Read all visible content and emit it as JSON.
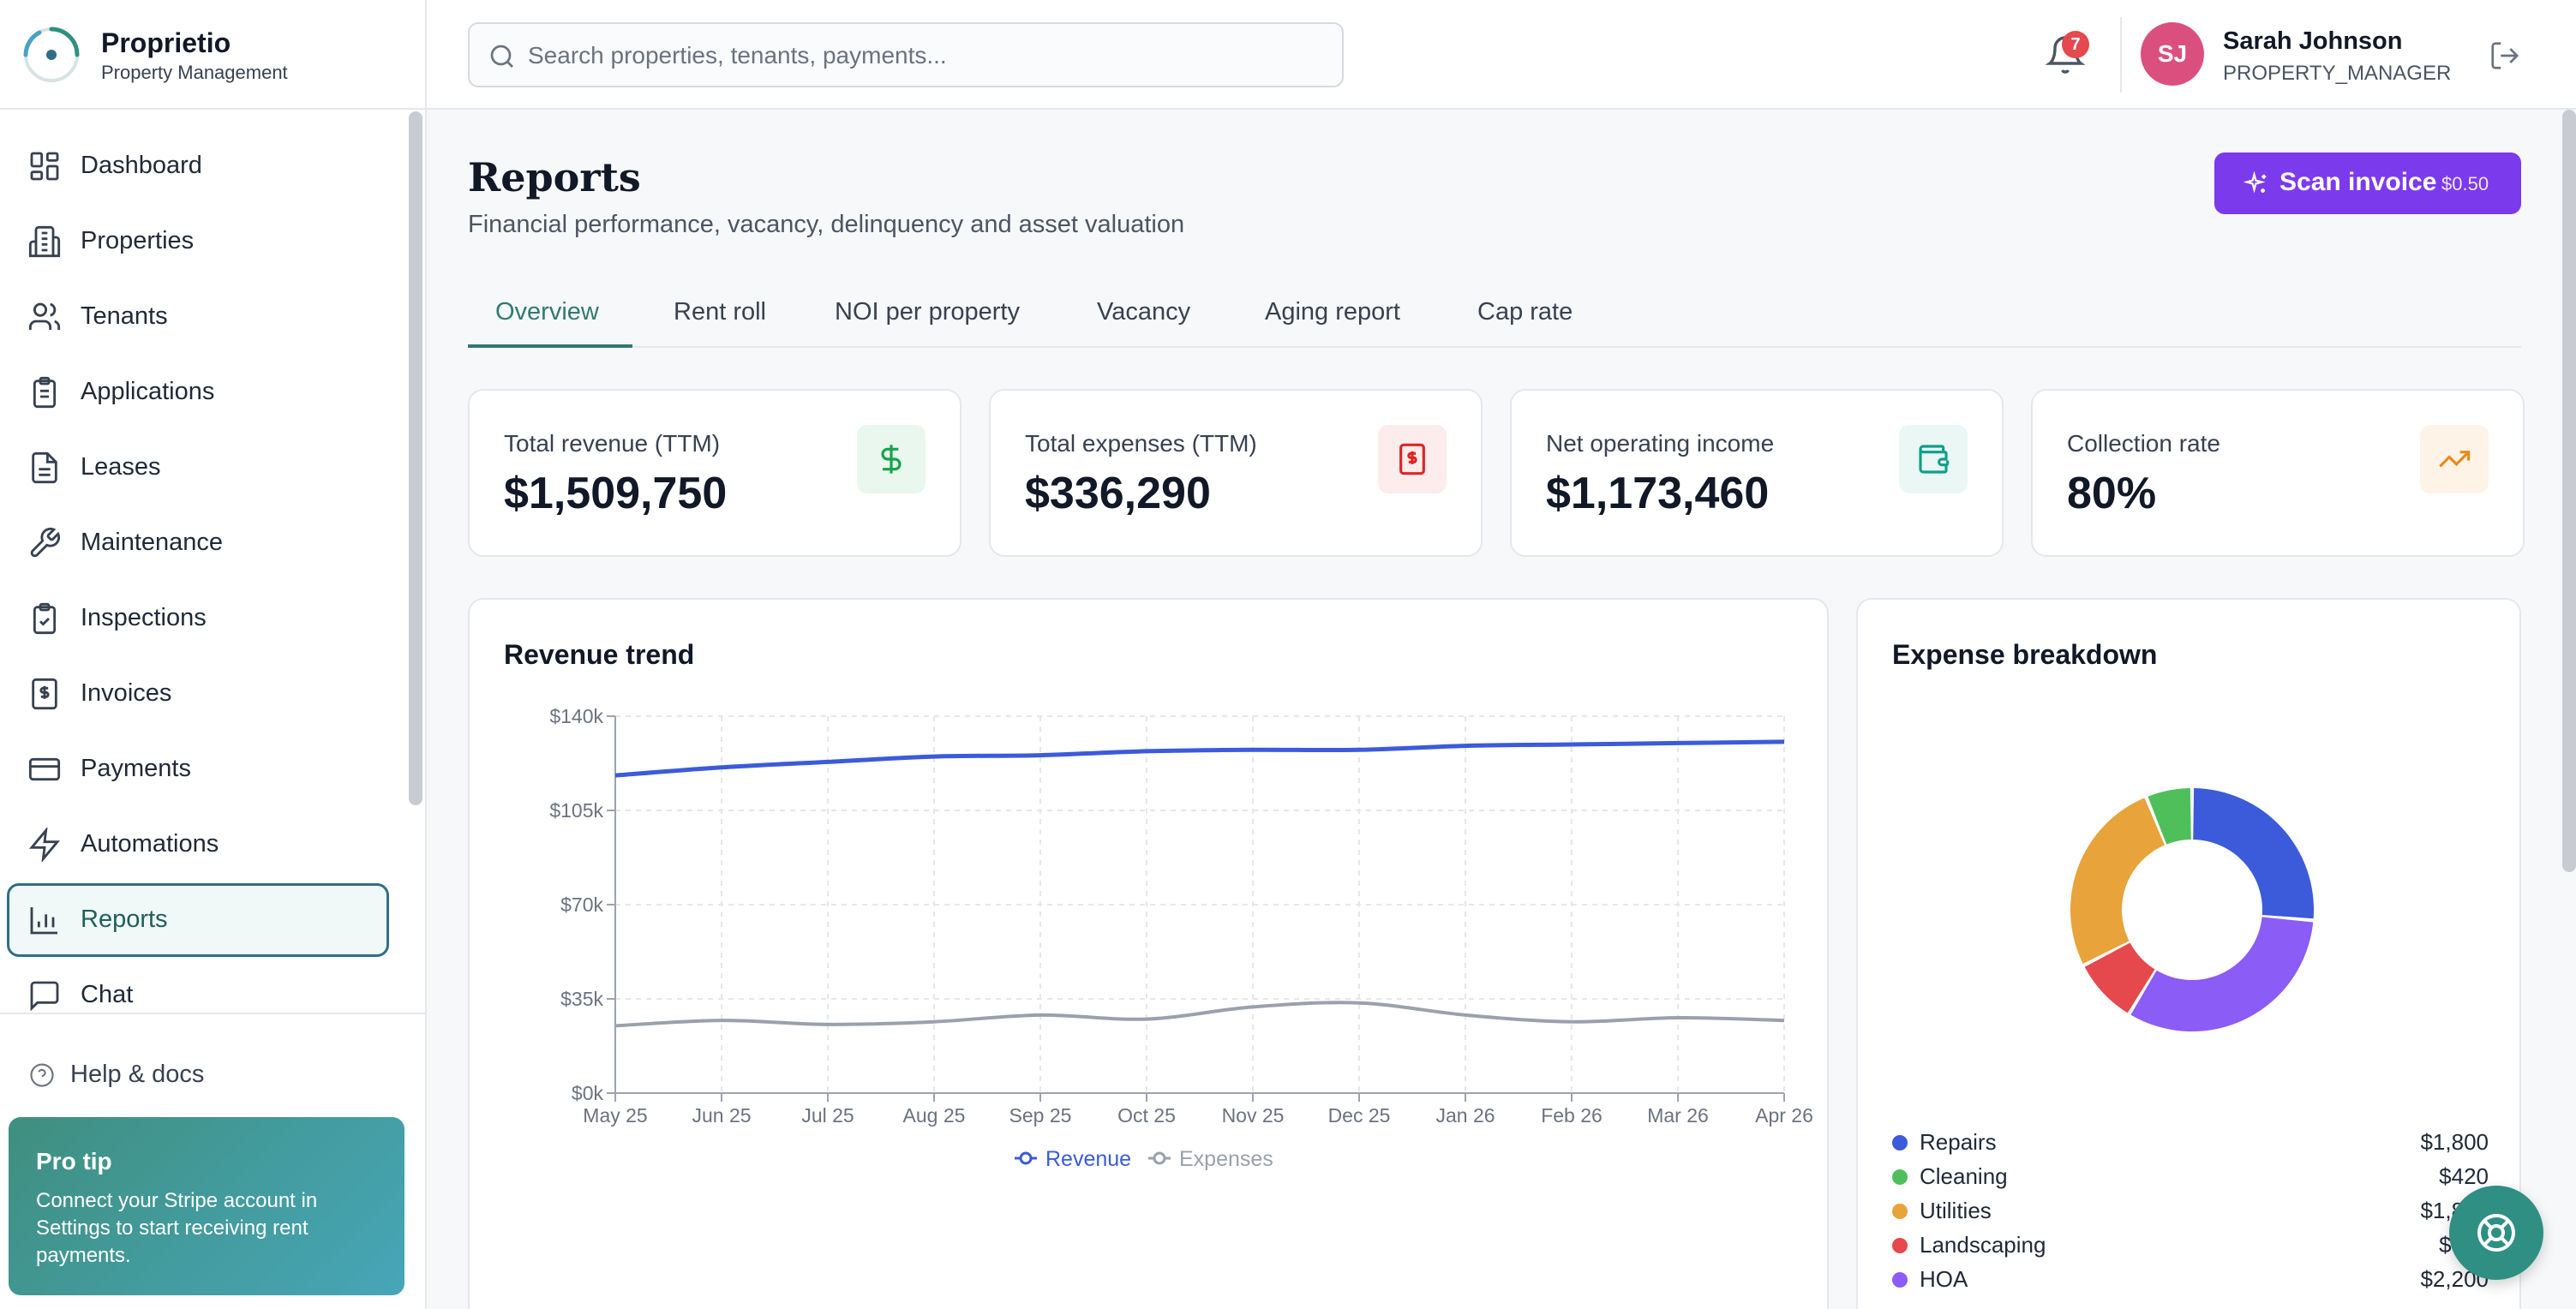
{
  "brand": {
    "name": "Proprietio",
    "subtitle": "Property Management"
  },
  "nav": {
    "items": [
      {
        "label": "Dashboard",
        "icon": "dashboard-icon"
      },
      {
        "label": "Properties",
        "icon": "building-icon"
      },
      {
        "label": "Tenants",
        "icon": "users-icon"
      },
      {
        "label": "Applications",
        "icon": "clipboard-icon"
      },
      {
        "label": "Leases",
        "icon": "document-icon"
      },
      {
        "label": "Maintenance",
        "icon": "wrench-icon"
      },
      {
        "label": "Inspections",
        "icon": "clipboard-check-icon"
      },
      {
        "label": "Invoices",
        "icon": "invoice-icon"
      },
      {
        "label": "Payments",
        "icon": "credit-card-icon"
      },
      {
        "label": "Automations",
        "icon": "lightning-icon"
      },
      {
        "label": "Reports",
        "icon": "bar-chart-icon",
        "active": true
      },
      {
        "label": "Chat",
        "icon": "chat-icon"
      }
    ],
    "help_label": "Help & docs"
  },
  "protip": {
    "title": "Pro tip",
    "text": "Connect your Stripe account in Settings to start receiving rent payments."
  },
  "topbar": {
    "search_placeholder": "Search properties, tenants, payments...",
    "notification_count": "7",
    "user": {
      "initials": "SJ",
      "name": "Sarah Johnson",
      "role": "PROPERTY_MANAGER"
    }
  },
  "page": {
    "title": "Reports",
    "subtitle": "Financial performance, vacancy, delinquency and asset valuation",
    "scan_button": {
      "label": "Scan invoice",
      "price": "$0.50"
    }
  },
  "tabs": [
    {
      "label": "Overview",
      "active": true
    },
    {
      "label": "Rent roll"
    },
    {
      "label": "NOI per property"
    },
    {
      "label": "Vacancy"
    },
    {
      "label": "Aging report"
    },
    {
      "label": "Cap rate"
    }
  ],
  "kpis": [
    {
      "label": "Total revenue (TTM)",
      "value": "$1,509,750",
      "icon": "dollar-icon",
      "color": "#16a34a",
      "bg": "#e9f7ef"
    },
    {
      "label": "Total expenses (TTM)",
      "value": "$336,290",
      "icon": "receipt-icon",
      "color": "#dc2626",
      "bg": "#fdecec"
    },
    {
      "label": "Net operating income",
      "value": "$1,173,460",
      "icon": "wallet-icon",
      "color": "#0f9f8a",
      "bg": "#eaf7f5"
    },
    {
      "label": "Collection rate",
      "value": "80%",
      "icon": "trending-up-icon",
      "color": "#ea8a1a",
      "bg": "#fdf4e7"
    }
  ],
  "revenue_card": {
    "title": "Revenue trend"
  },
  "expense_card": {
    "title": "Expense breakdown"
  },
  "chart_data": [
    {
      "type": "line",
      "title": "Revenue trend",
      "x": [
        "May 25",
        "Jun 25",
        "Jul 25",
        "Aug 25",
        "Sep 25",
        "Oct 25",
        "Nov 25",
        "Dec 25",
        "Jan 26",
        "Feb 26",
        "Mar 26",
        "Apr 26"
      ],
      "y_ticks": [
        "$0k",
        "$35k",
        "$70k",
        "$105k",
        "$140k"
      ],
      "ylim": [
        0,
        140000
      ],
      "grid": true,
      "legend": "bottom-center",
      "series": [
        {
          "name": "Revenue",
          "color": "#3b5bdb",
          "values": [
            118000,
            121000,
            123000,
            125000,
            125500,
            127000,
            127500,
            127500,
            129000,
            129500,
            130000,
            130500
          ]
        },
        {
          "name": "Expenses",
          "color": "#9aa1ad",
          "values": [
            25000,
            27000,
            25500,
            26500,
            29000,
            27500,
            32000,
            33500,
            29000,
            26500,
            28000,
            27000
          ]
        }
      ]
    },
    {
      "type": "pie",
      "title": "Expense breakdown",
      "donut": true,
      "slices": [
        {
          "name": "Repairs",
          "label": "$1,800",
          "value": 1800,
          "color": "#3b5bdb"
        },
        {
          "name": "HOA",
          "label": "$2,200",
          "value": 2200,
          "color": "#8b5cf6"
        },
        {
          "name": "Landscaping",
          "label": "$600",
          "value": 600,
          "color": "#e5484d"
        },
        {
          "name": "Utilities",
          "label": "$1,800",
          "value": 1800,
          "color": "#e8a33a"
        },
        {
          "name": "Cleaning",
          "label": "$420",
          "value": 420,
          "color": "#4fbf5a"
        }
      ],
      "legend_order": [
        "Repairs",
        "Cleaning",
        "Utilities",
        "Landscaping",
        "HOA"
      ]
    }
  ]
}
